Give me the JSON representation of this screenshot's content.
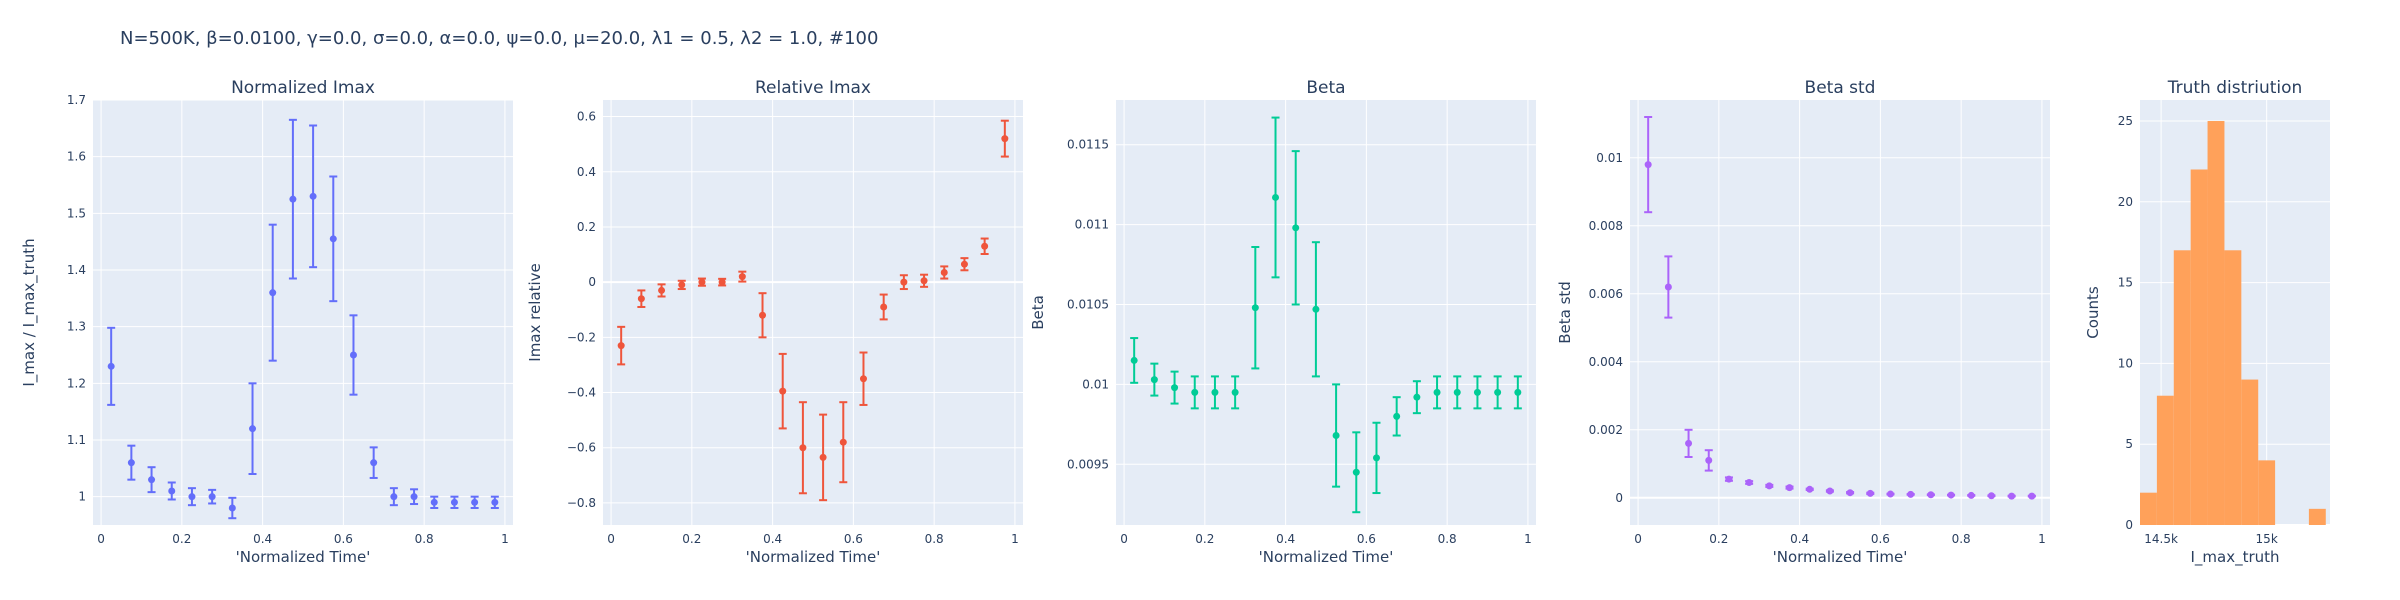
{
  "title": "N=500K, β=0.0100, γ=0.0, σ=0.0,  α=0.0, ψ=0.0, μ=20.0, λ1 = 0.5, λ2 = 1.0, #100",
  "colors": {
    "plot_bg": "#E5ECF6",
    "grid": "#ffffff",
    "text": "#2a3f5f",
    "blue": "#636EFA",
    "red": "#EF553B",
    "green": "#00CC96",
    "purple": "#AB63FA",
    "orange": "#FFA15A"
  },
  "chart_data": [
    {
      "type": "scatter",
      "title": "Normalized Imax",
      "xlabel": "'Normalized Time'",
      "ylabel": "I_max / I_max_truth",
      "xlim": [
        -0.02,
        1.02
      ],
      "ylim": [
        0.95,
        1.7
      ],
      "xticks": [
        0,
        0.2,
        0.4,
        0.6,
        0.8,
        1
      ],
      "xticklabels": [
        "0",
        "0.2",
        "0.4",
        "0.6",
        "0.8",
        "1"
      ],
      "yticks": [
        1,
        1.1,
        1.2,
        1.3,
        1.4,
        1.5,
        1.6,
        1.7
      ],
      "yticklabels": [
        "1",
        "1.1",
        "1.2",
        "1.3",
        "1.4",
        "1.5",
        "1.6",
        "1.7"
      ],
      "color": "blue",
      "x": [
        0.025,
        0.075,
        0.125,
        0.175,
        0.225,
        0.275,
        0.325,
        0.375,
        0.425,
        0.475,
        0.525,
        0.575,
        0.625,
        0.675,
        0.725,
        0.775,
        0.825,
        0.875,
        0.925,
        0.975
      ],
      "y": [
        1.23,
        1.06,
        1.03,
        1.01,
        1.0,
        1.0,
        0.98,
        1.12,
        1.36,
        1.525,
        1.53,
        1.455,
        1.25,
        1.06,
        1.0,
        1.0,
        0.99,
        0.99,
        0.99,
        0.99
      ],
      "err": [
        0.068,
        0.03,
        0.022,
        0.015,
        0.015,
        0.012,
        0.018,
        0.08,
        0.12,
        0.14,
        0.125,
        0.11,
        0.07,
        0.027,
        0.015,
        0.013,
        0.01,
        0.01,
        0.01,
        0.01
      ]
    },
    {
      "type": "scatter",
      "title": "Relative Imax",
      "xlabel": "'Normalized Time'",
      "ylabel": "Imax relative",
      "xlim": [
        -0.02,
        1.02
      ],
      "ylim": [
        -0.88,
        0.66
      ],
      "xticks": [
        0,
        0.2,
        0.4,
        0.6,
        0.8,
        1
      ],
      "xticklabels": [
        "0",
        "0.2",
        "0.4",
        "0.6",
        "0.8",
        "1"
      ],
      "yticks": [
        -0.8,
        -0.6,
        -0.4,
        -0.2,
        0,
        0.2,
        0.4,
        0.6
      ],
      "yticklabels": [
        "−0.8",
        "−0.6",
        "−0.4",
        "−0.2",
        "0",
        "0.2",
        "0.4",
        "0.6"
      ],
      "color": "red",
      "x": [
        0.025,
        0.075,
        0.125,
        0.175,
        0.225,
        0.275,
        0.325,
        0.375,
        0.425,
        0.475,
        0.525,
        0.575,
        0.625,
        0.675,
        0.725,
        0.775,
        0.825,
        0.875,
        0.925,
        0.975
      ],
      "y": [
        -0.23,
        -0.06,
        -0.03,
        -0.01,
        0.0,
        0.0,
        0.02,
        -0.12,
        -0.395,
        -0.6,
        -0.635,
        -0.58,
        -0.35,
        -0.09,
        0.0,
        0.005,
        0.035,
        0.065,
        0.13,
        0.52
      ],
      "err": [
        0.068,
        0.03,
        0.022,
        0.015,
        0.013,
        0.012,
        0.018,
        0.08,
        0.135,
        0.165,
        0.155,
        0.145,
        0.095,
        0.045,
        0.025,
        0.022,
        0.022,
        0.022,
        0.028,
        0.065
      ]
    },
    {
      "type": "scatter",
      "title": "Beta",
      "xlabel": "'Normalized Time'",
      "ylabel": "Beta",
      "xlim": [
        -0.02,
        1.02
      ],
      "ylim": [
        0.00912,
        0.01178
      ],
      "xticks": [
        0,
        0.2,
        0.4,
        0.6,
        0.8,
        1
      ],
      "xticklabels": [
        "0",
        "0.2",
        "0.4",
        "0.6",
        "0.8",
        "1"
      ],
      "yticks": [
        0.0095,
        0.01,
        0.0105,
        0.011,
        0.0115
      ],
      "yticklabels": [
        "0.0095",
        "0.01",
        "0.0105",
        "0.011",
        "0.0115"
      ],
      "color": "green",
      "x": [
        0.025,
        0.075,
        0.125,
        0.175,
        0.225,
        0.275,
        0.325,
        0.375,
        0.425,
        0.475,
        0.525,
        0.575,
        0.625,
        0.675,
        0.725,
        0.775,
        0.825,
        0.875,
        0.925,
        0.975
      ],
      "y": [
        0.01015,
        0.01003,
        0.00998,
        0.00995,
        0.00995,
        0.00995,
        0.01048,
        0.01117,
        0.01098,
        0.01047,
        0.00968,
        0.00945,
        0.00954,
        0.0098,
        0.00992,
        0.00995,
        0.00995,
        0.00995,
        0.00995,
        0.00995
      ],
      "err": [
        0.00014,
        0.0001,
        0.0001,
        0.0001,
        0.0001,
        0.0001,
        0.00038,
        0.0005,
        0.00048,
        0.00042,
        0.00032,
        0.00025,
        0.00022,
        0.00012,
        0.0001,
        0.0001,
        0.0001,
        0.0001,
        0.0001,
        0.0001
      ]
    },
    {
      "type": "scatter",
      "title": "Beta std",
      "xlabel": "'Normalized Time'",
      "ylabel": "Beta std",
      "xlim": [
        -0.02,
        1.02
      ],
      "ylim": [
        -0.0008,
        0.0117
      ],
      "xticks": [
        0,
        0.2,
        0.4,
        0.6,
        0.8,
        1
      ],
      "xticklabels": [
        "0",
        "0.2",
        "0.4",
        "0.6",
        "0.8",
        "1"
      ],
      "yticks": [
        0,
        0.002,
        0.004,
        0.006,
        0.008,
        0.01
      ],
      "yticklabels": [
        "0",
        "0.002",
        "0.004",
        "0.006",
        "0.008",
        "0.01"
      ],
      "color": "purple",
      "x": [
        0.025,
        0.075,
        0.125,
        0.175,
        0.225,
        0.275,
        0.325,
        0.375,
        0.425,
        0.475,
        0.525,
        0.575,
        0.625,
        0.675,
        0.725,
        0.775,
        0.825,
        0.875,
        0.925,
        0.975
      ],
      "y": [
        0.0098,
        0.0062,
        0.0016,
        0.0011,
        0.00055,
        0.00045,
        0.00035,
        0.0003,
        0.00025,
        0.0002,
        0.00015,
        0.00013,
        0.00011,
        0.0001,
        9e-05,
        8e-05,
        7e-05,
        6e-05,
        5e-05,
        5e-05
      ],
      "err": [
        0.0014,
        0.0009,
        0.0004,
        0.0003,
        5e-05,
        4e-05,
        3e-05,
        3e-05,
        2e-05,
        2e-05,
        2e-05,
        2e-05,
        1e-05,
        1e-05,
        1e-05,
        1e-05,
        1e-05,
        1e-05,
        1e-05,
        1e-05
      ]
    },
    {
      "type": "bar",
      "title": "Truth distriution",
      "xlabel": "I_max_truth",
      "ylabel": "Counts",
      "xlim": [
        14400,
        15300
      ],
      "ylim": [
        0,
        26.3
      ],
      "xticks": [
        14500,
        15000
      ],
      "xticklabels": [
        "14.5k",
        "15k"
      ],
      "yticks": [
        0,
        5,
        10,
        15,
        20,
        25
      ],
      "yticklabels": [
        "0",
        "5",
        "10",
        "15",
        "20",
        "25"
      ],
      "color": "orange",
      "bin_edges": [
        14400,
        14480,
        14560,
        14640,
        14720,
        14800,
        14880,
        14960,
        15040,
        15120,
        15200,
        15280
      ],
      "counts": [
        2,
        8,
        17,
        22,
        25,
        17,
        9,
        4,
        0,
        0,
        1
      ]
    }
  ]
}
